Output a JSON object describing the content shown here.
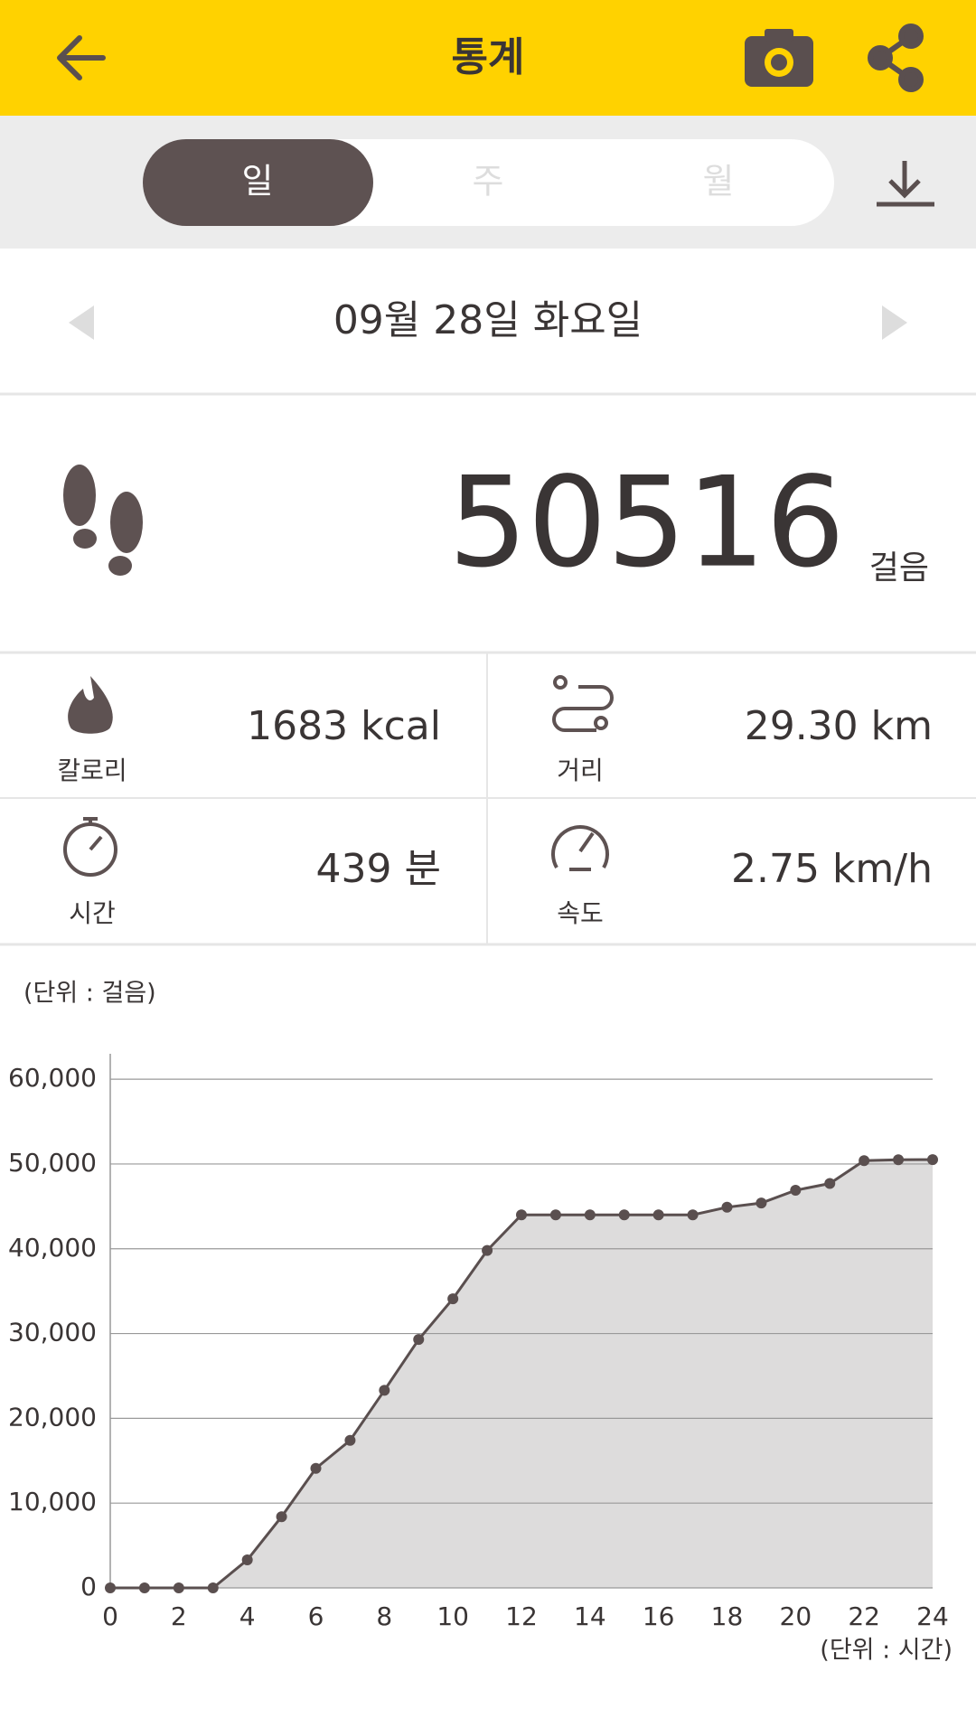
{
  "header": {
    "title": "통계"
  },
  "tabs": [
    "일",
    "주",
    "월"
  ],
  "date": "09월 28일 화요일",
  "steps": {
    "value": "50516",
    "unit": "걸음"
  },
  "stats": [
    {
      "label": "칼로리",
      "value": "1683 kcal"
    },
    {
      "label": "거리",
      "value": "29.30 km"
    },
    {
      "label": "시간",
      "value": "439 분"
    },
    {
      "label": "속도",
      "value": "2.75 km/h"
    }
  ],
  "chart_data": {
    "type": "area",
    "y_unit_label": "(단위 : 걸음)",
    "x_unit_label": "(단위 : 시간)",
    "x": [
      0,
      1,
      2,
      3,
      4,
      5,
      6,
      7,
      8,
      9,
      10,
      11,
      12,
      13,
      14,
      15,
      16,
      17,
      18,
      19,
      20,
      21,
      22,
      23,
      24
    ],
    "values": [
      0,
      0,
      0,
      0,
      3300,
      8400,
      14100,
      17400,
      23300,
      29300,
      34100,
      39800,
      44000,
      44000,
      44000,
      44000,
      44000,
      44000,
      44900,
      45400,
      46900,
      47700,
      50400,
      50500,
      50516
    ],
    "color": "#5a4f4f",
    "fill": "#dddcdc",
    "xlim": [
      0,
      24
    ],
    "xticks": [
      0,
      2,
      4,
      6,
      8,
      10,
      12,
      14,
      16,
      18,
      20,
      22,
      24
    ],
    "ylim": [
      0,
      63000
    ],
    "yticks": [
      0,
      {
        "value": 10000,
        "label": "10,000"
      },
      {
        "value": 20000,
        "label": "20,000"
      },
      {
        "value": 30000,
        "label": "30,000"
      },
      {
        "value": 40000,
        "label": "40,000"
      },
      {
        "value": 50000,
        "label": "50,000"
      },
      {
        "value": 60000,
        "label": "60,000"
      }
    ],
    "grid": true
  }
}
